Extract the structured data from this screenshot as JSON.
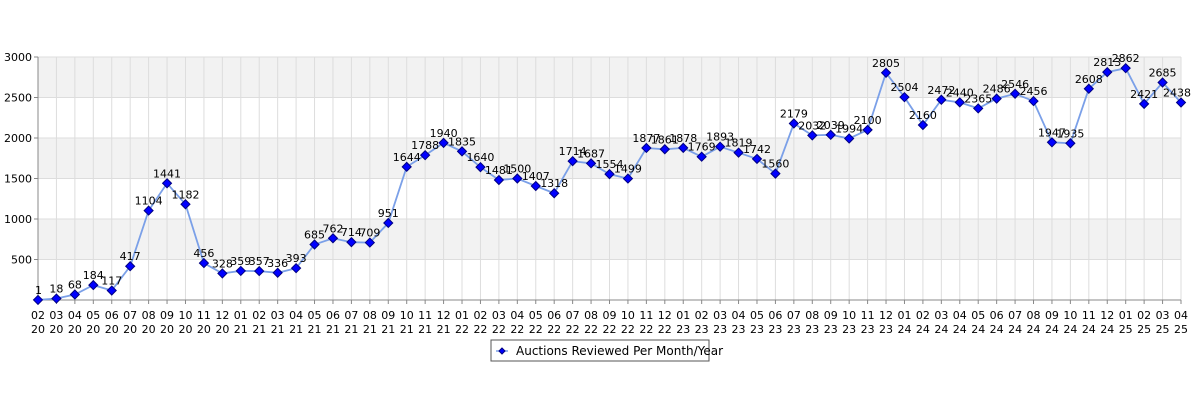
{
  "chart_data": {
    "type": "line",
    "categories": [
      [
        "02",
        "20"
      ],
      [
        "03",
        "20"
      ],
      [
        "04",
        "20"
      ],
      [
        "05",
        "20"
      ],
      [
        "06",
        "20"
      ],
      [
        "07",
        "20"
      ],
      [
        "08",
        "20"
      ],
      [
        "09",
        "20"
      ],
      [
        "10",
        "20"
      ],
      [
        "11",
        "20"
      ],
      [
        "12",
        "20"
      ],
      [
        "01",
        "21"
      ],
      [
        "02",
        "21"
      ],
      [
        "03",
        "21"
      ],
      [
        "04",
        "21"
      ],
      [
        "05",
        "21"
      ],
      [
        "06",
        "21"
      ],
      [
        "07",
        "21"
      ],
      [
        "08",
        "21"
      ],
      [
        "09",
        "21"
      ],
      [
        "10",
        "21"
      ],
      [
        "11",
        "21"
      ],
      [
        "12",
        "21"
      ],
      [
        "01",
        "22"
      ],
      [
        "02",
        "22"
      ],
      [
        "03",
        "22"
      ],
      [
        "04",
        "22"
      ],
      [
        "05",
        "22"
      ],
      [
        "06",
        "22"
      ],
      [
        "07",
        "22"
      ],
      [
        "08",
        "22"
      ],
      [
        "09",
        "22"
      ],
      [
        "10",
        "22"
      ],
      [
        "11",
        "22"
      ],
      [
        "12",
        "22"
      ],
      [
        "01",
        "23"
      ],
      [
        "02",
        "23"
      ],
      [
        "03",
        "23"
      ],
      [
        "04",
        "23"
      ],
      [
        "05",
        "23"
      ],
      [
        "06",
        "23"
      ],
      [
        "07",
        "23"
      ],
      [
        "08",
        "23"
      ],
      [
        "09",
        "23"
      ],
      [
        "10",
        "23"
      ],
      [
        "11",
        "23"
      ],
      [
        "12",
        "23"
      ],
      [
        "01",
        "24"
      ],
      [
        "02",
        "24"
      ],
      [
        "03",
        "24"
      ],
      [
        "04",
        "24"
      ],
      [
        "05",
        "24"
      ],
      [
        "06",
        "24"
      ],
      [
        "07",
        "24"
      ],
      [
        "08",
        "24"
      ],
      [
        "09",
        "24"
      ],
      [
        "10",
        "24"
      ],
      [
        "11",
        "24"
      ],
      [
        "12",
        "24"
      ],
      [
        "01",
        "25"
      ],
      [
        "02",
        "25"
      ],
      [
        "03",
        "25"
      ],
      [
        "04",
        "25"
      ]
    ],
    "series": [
      {
        "name": "Auctions Reviewed Per Month/Year",
        "values": [
          1,
          18,
          68,
          184,
          117,
          417,
          1104,
          1441,
          1182,
          456,
          328,
          359,
          357,
          336,
          393,
          685,
          762,
          714,
          709,
          951,
          1644,
          1788,
          1940,
          1835,
          1640,
          1481,
          1500,
          1407,
          1318,
          1714,
          1687,
          1554,
          1499,
          1877,
          1861,
          1878,
          1769,
          1893,
          1819,
          1742,
          1560,
          2179,
          2032,
          2039,
          1994,
          2100,
          2805,
          2504,
          2160,
          2472,
          2440,
          2365,
          2486,
          2546,
          2456,
          1947,
          1935,
          2608,
          2813,
          2862,
          2421,
          2685,
          2438
        ]
      }
    ],
    "ylim": [
      0,
      3000
    ],
    "yticks": [
      500,
      1000,
      1500,
      2000,
      2500,
      3000
    ],
    "grid": true,
    "legend_position": "bottom-center",
    "colors": {
      "line": "#7ba0e8",
      "marker_fill": "#0000ff",
      "marker_stroke": "#000080",
      "band": "#f2f2f2",
      "grid": "#dddddd",
      "axis": "#888888",
      "text": "#000000"
    }
  }
}
